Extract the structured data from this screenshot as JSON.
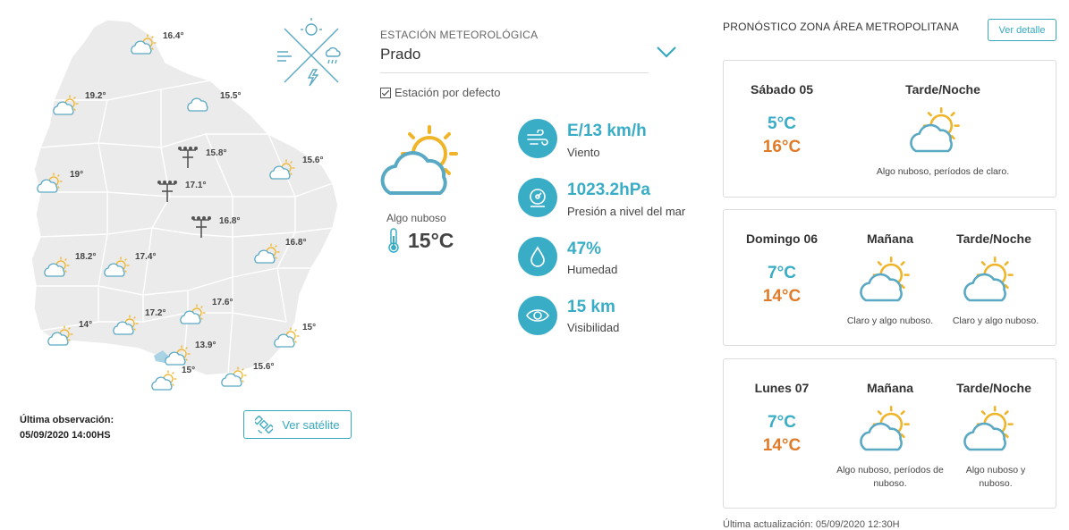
{
  "map": {
    "labels": [
      "16.4°",
      "19.2°",
      "15.5°",
      "15.8°",
      "15.6°",
      "19°",
      "17.1°",
      "16.8°",
      "18.2°",
      "17.4°",
      "16.8°",
      "17.6°",
      "17.2°",
      "14°",
      "15°",
      "13.9°",
      "15°",
      "15.6°"
    ],
    "last_obs_title": "Última observación:",
    "last_obs_value": "05/09/2020 14:00HS",
    "satellite_button": "Ver satélite"
  },
  "station": {
    "caption": "ESTACIÓN METEOROLÓGICA",
    "name": "Prado",
    "default_label": "Estación por defecto",
    "condition": "Algo nuboso",
    "temperature": "15°C",
    "stats": [
      {
        "icon": "wind-icon",
        "value": "E/13 km/h",
        "label": "Viento"
      },
      {
        "icon": "pressure-icon",
        "value": "1023.2hPa",
        "label": "Presión a nivel del mar"
      },
      {
        "icon": "humidity-icon",
        "value": "47%",
        "label": "Humedad"
      },
      {
        "icon": "visibility-icon",
        "value": "15 km",
        "label": "Visibilidad"
      }
    ]
  },
  "forecast": {
    "title": "PRONÓSTICO ZONA ÁREA METROPOLITANA",
    "detail_button": "Ver detalle",
    "days": [
      {
        "day": "Sábado 05",
        "min": "5°C",
        "max": "16°C",
        "periods": [
          {
            "name": "Tarde/Noche",
            "desc": "Algo nuboso, períodos de claro."
          }
        ]
      },
      {
        "day": "Domingo 06",
        "min": "7°C",
        "max": "14°C",
        "periods": [
          {
            "name": "Mañana",
            "desc": "Claro y algo nuboso."
          },
          {
            "name": "Tarde/Noche",
            "desc": "Claro y algo nuboso."
          }
        ]
      },
      {
        "day": "Lunes 07",
        "min": "7°C",
        "max": "14°C",
        "periods": [
          {
            "name": "Mañana",
            "desc": "Algo nuboso, períodos de nuboso."
          },
          {
            "name": "Tarde/Noche",
            "desc": "Algo nuboso y nuboso."
          }
        ]
      }
    ],
    "footer": "Última actualización: 05/09/2020 12:30H"
  },
  "colors": {
    "accent": "#3aadc6",
    "warm": "#e07b2a",
    "sun": "#f0b429"
  }
}
